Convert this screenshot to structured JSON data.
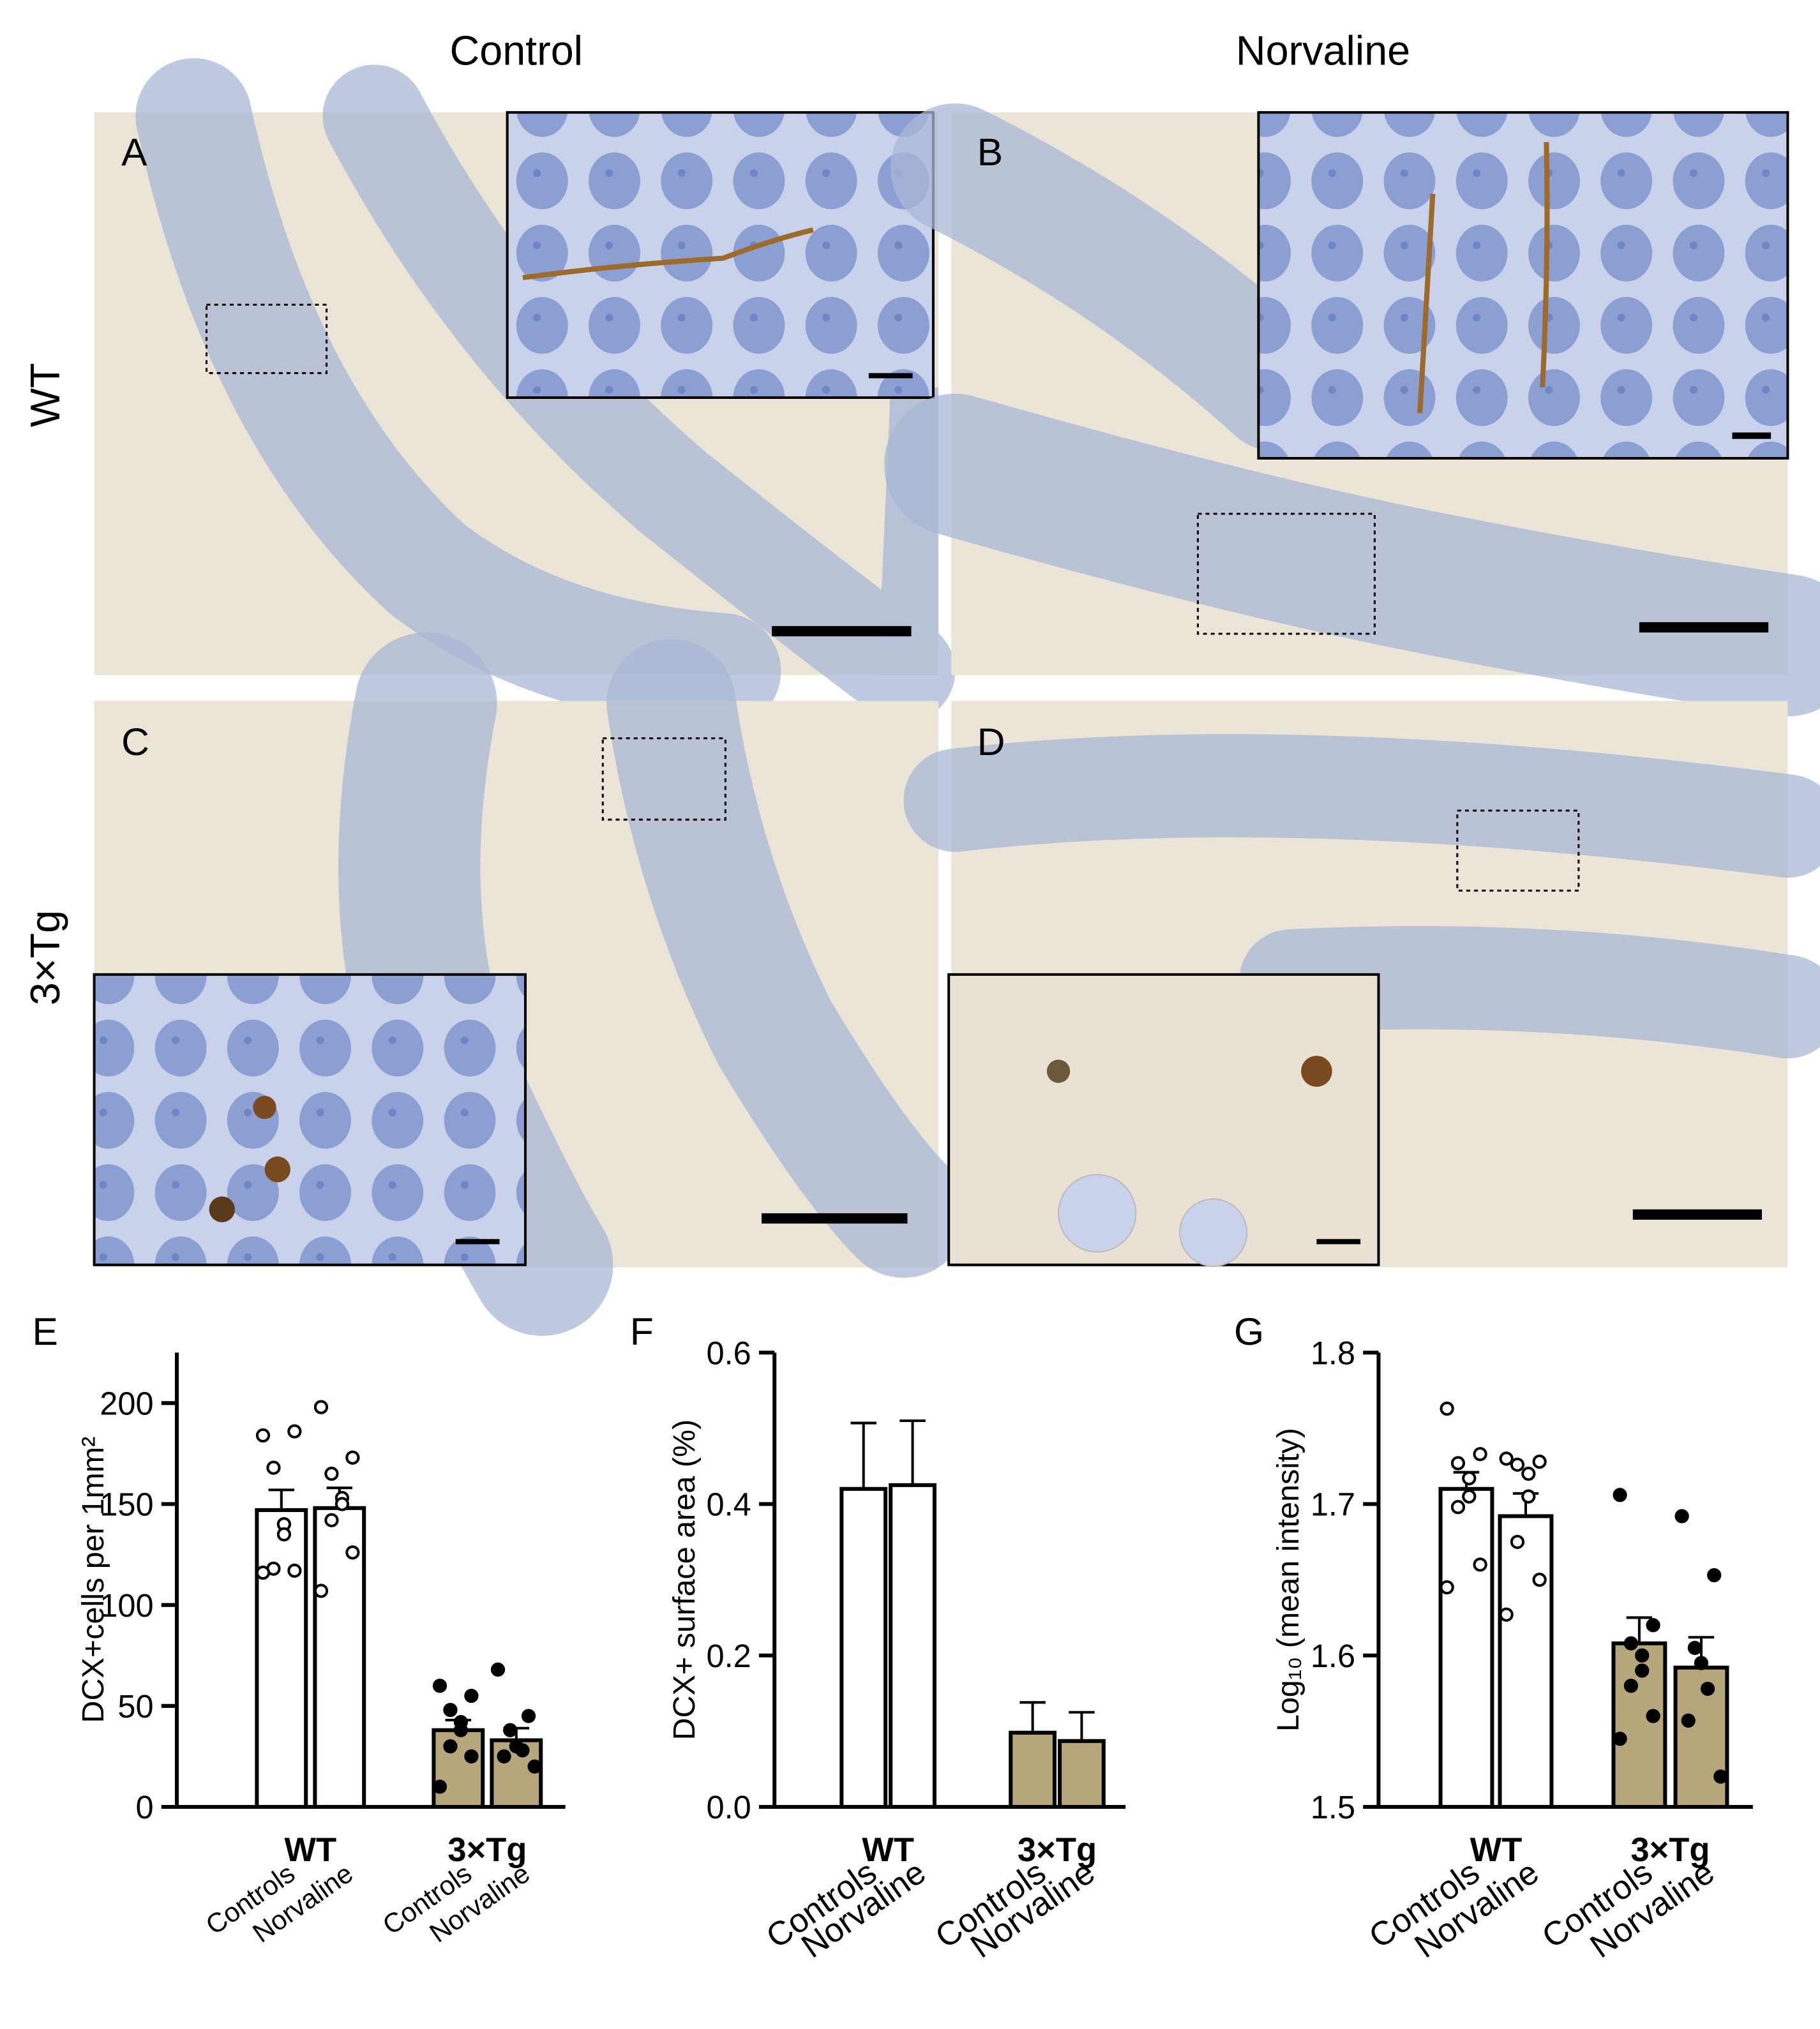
{
  "figure": {
    "columns": [
      "Control",
      "Norvaline"
    ],
    "rows": [
      "WT",
      "3×Tg"
    ],
    "panels": [
      "A",
      "B",
      "C",
      "D"
    ]
  },
  "chart_data": [
    {
      "type": "bar",
      "panel": "E",
      "y_label": "DCX+cells per 1mm²",
      "groups": [
        "WT",
        "3×Tg"
      ],
      "categories": [
        "Controls",
        "Norvaline",
        "Controls",
        "Norvaline"
      ],
      "values": [
        147,
        148,
        38,
        33
      ],
      "errors": [
        10,
        10,
        5,
        6
      ],
      "colors": [
        "#ffffff",
        "#ffffff",
        "#b5a67c",
        "#b5a67c"
      ],
      "point_colors": [
        "#ffffff",
        "#ffffff",
        "#000000",
        "#000000"
      ],
      "points": [
        [
          184,
          186,
          168,
          140,
          135,
          118,
          117,
          116
        ],
        [
          198,
          173,
          165,
          153,
          150,
          142,
          126,
          107
        ],
        [
          60,
          55,
          48,
          42,
          38,
          30,
          25,
          10
        ],
        [
          68,
          45,
          38,
          30,
          28,
          25,
          20
        ]
      ],
      "ylim": [
        0,
        225
      ],
      "yticks": [
        0,
        50,
        100,
        150,
        200
      ]
    },
    {
      "type": "bar",
      "panel": "F",
      "y_label": "DCX+ surface area (%)",
      "groups": [
        "WT",
        "3×Tg"
      ],
      "categories": [
        "Controls",
        "Norvaline",
        "Controls",
        "Norvaline"
      ],
      "values": [
        0.42,
        0.425,
        0.098,
        0.087
      ],
      "errors": [
        0.087,
        0.085,
        0.04,
        0.038
      ],
      "colors": [
        "#ffffff",
        "#ffffff",
        "#b5a67c",
        "#b5a67c"
      ],
      "ylim": [
        0,
        0.6
      ],
      "yticks": [
        {
          "value": 0,
          "label": "0.0"
        },
        0.2,
        0.4,
        0.6
      ]
    },
    {
      "type": "bar",
      "panel": "G",
      "y_label": "Log₁₀ (mean intensity)",
      "groups": [
        "WT",
        "3×Tg"
      ],
      "categories": [
        "Controls",
        "Norvaline",
        "Controls",
        "Norvaline"
      ],
      "values": [
        1.71,
        1.692,
        1.608,
        1.592
      ],
      "errors": [
        0.011,
        0.015,
        0.017,
        0.02
      ],
      "colors": [
        "#ffffff",
        "#ffffff",
        "#b5a67c",
        "#b5a67c"
      ],
      "point_colors": [
        "#ffffff",
        "#ffffff",
        "#000000",
        "#000000"
      ],
      "points": [
        [
          1.763,
          1.733,
          1.727,
          1.717,
          1.705,
          1.698,
          1.66,
          1.645
        ],
        [
          1.73,
          1.728,
          1.726,
          1.72,
          1.705,
          1.675,
          1.65,
          1.627
        ],
        [
          1.706,
          1.62,
          1.608,
          1.6,
          1.59,
          1.58,
          1.56,
          1.545
        ],
        [
          1.692,
          1.653,
          1.605,
          1.595,
          1.578,
          1.557,
          1.52
        ]
      ],
      "ylim": [
        1.5,
        1.8
      ],
      "yticks": [
        1.5,
        1.6,
        1.7,
        1.8
      ]
    }
  ]
}
